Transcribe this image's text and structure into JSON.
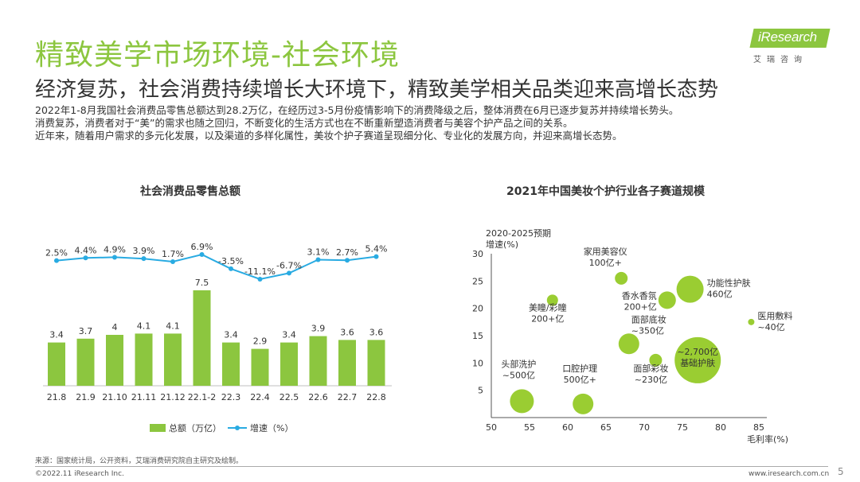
{
  "header": {
    "title": "精致美学市场环境-社会环境",
    "subtitle": "经济复苏，社会消费持续增长大环境下，精致美学相关品类迎来高增长态势",
    "intro": [
      "2022年1-8月我国社会消费品零售总额达到28.2万亿，在经历过3-5月份疫情影响下的消费降级之后，整体消费在6月已逐步复苏并持续增长势头。",
      "消费复苏，消费者对于“美”的需求也随之回归，不断变化的生活方式也在不断重新塑造消费者与美容个护产品之间的关系。",
      "近年来，随着用户需求的多元化发展，以及渠道的多样化属性，美妆个护子赛道呈现细分化、专业化的发展方向，并迎来高增长态势。"
    ]
  },
  "logo": {
    "text": "iResearch",
    "cn": "艾瑞咨询"
  },
  "colors": {
    "accent": "#8cc63f",
    "line": "#29abe2",
    "bubble": "#9acd32"
  },
  "chart_data": [
    {
      "type": "bar",
      "title": "社会消费品零售总额",
      "categories": [
        "21.8",
        "21.9",
        "21.10",
        "21.11",
        "21.12",
        "22.1-2",
        "22.3",
        "22.4",
        "22.5",
        "22.6",
        "22.7",
        "22.8"
      ],
      "series": [
        {
          "name": "总额（万亿）",
          "type": "bar",
          "values": [
            3.4,
            3.7,
            4.0,
            4.1,
            4.1,
            7.5,
            3.4,
            2.9,
            3.4,
            3.9,
            3.6,
            3.6
          ]
        },
        {
          "name": "增速（%）",
          "type": "line",
          "values": [
            2.5,
            4.4,
            4.9,
            3.9,
            1.7,
            6.9,
            -3.5,
            -11.1,
            -6.7,
            3.1,
            2.7,
            5.4
          ],
          "labels": [
            "2.5%",
            "4.4%",
            "4.9%",
            "3.9%",
            "1.7%",
            "6.9%",
            "-3.5%",
            "-11.1%",
            "-6.7%",
            "3.1%",
            "2.7%",
            "5.4%"
          ]
        }
      ],
      "legend_placement": "bottom"
    },
    {
      "type": "scatter",
      "title": "2021年中国美妆个护行业各子赛道规模",
      "ylabel_lines": [
        "2020-2025预期",
        "增速(%)"
      ],
      "xlabel": "毛利率(%)",
      "xlim": [
        50,
        85
      ],
      "ylim": [
        0,
        30
      ],
      "xticks": [
        50,
        55,
        60,
        65,
        70,
        75,
        80,
        85
      ],
      "yticks": [
        5,
        10,
        15,
        20,
        25,
        30
      ],
      "points": [
        {
          "label": [
            "家用美容仪",
            "100亿+"
          ],
          "x": 67,
          "y": 25.5,
          "r": 8,
          "label_pos": "above-left"
        },
        {
          "label": [
            "功能性护肤",
            "460亿"
          ],
          "x": 76,
          "y": 23.5,
          "r": 17,
          "label_pos": "right"
        },
        {
          "label": [
            "香水香氛",
            "200+亿"
          ],
          "x": 73,
          "y": 21.5,
          "r": 11,
          "label_pos": "left"
        },
        {
          "label": [
            "美瞳/彩瞳",
            "200+亿"
          ],
          "x": 58,
          "y": 21.5,
          "r": 7,
          "label_pos": "below"
        },
        {
          "label": [
            "医用敷料",
            "~40亿"
          ],
          "x": 84,
          "y": 17.5,
          "r": 4,
          "label_pos": "right"
        },
        {
          "label": [
            "面部底妆",
            "~350亿"
          ],
          "x": 68,
          "y": 13.5,
          "r": 13,
          "label_pos": "above-right"
        },
        {
          "label": [
            "面部彩妆",
            "~230亿"
          ],
          "x": 71.5,
          "y": 10.5,
          "r": 8,
          "label_pos": "below"
        },
        {
          "label": [
            "~2,700亿",
            "基础护肤"
          ],
          "x": 77,
          "y": 10.5,
          "r": 29,
          "label_pos": "inside"
        },
        {
          "label": [
            "头部洗护",
            "~500亿"
          ],
          "x": 54,
          "y": 3,
          "r": 15,
          "label_pos": "above"
        },
        {
          "label": [
            "口腔护理",
            "500亿+"
          ],
          "x": 62,
          "y": 2.5,
          "r": 13,
          "label_pos": "above"
        }
      ]
    }
  ],
  "footer": {
    "source": "来源：国家统计局，公开资料，艾瑞消费研究院自主研究及绘制。",
    "copyright": "©2022.11 iResearch Inc.",
    "website": "www.iresearch.com.cn",
    "page": "5"
  }
}
